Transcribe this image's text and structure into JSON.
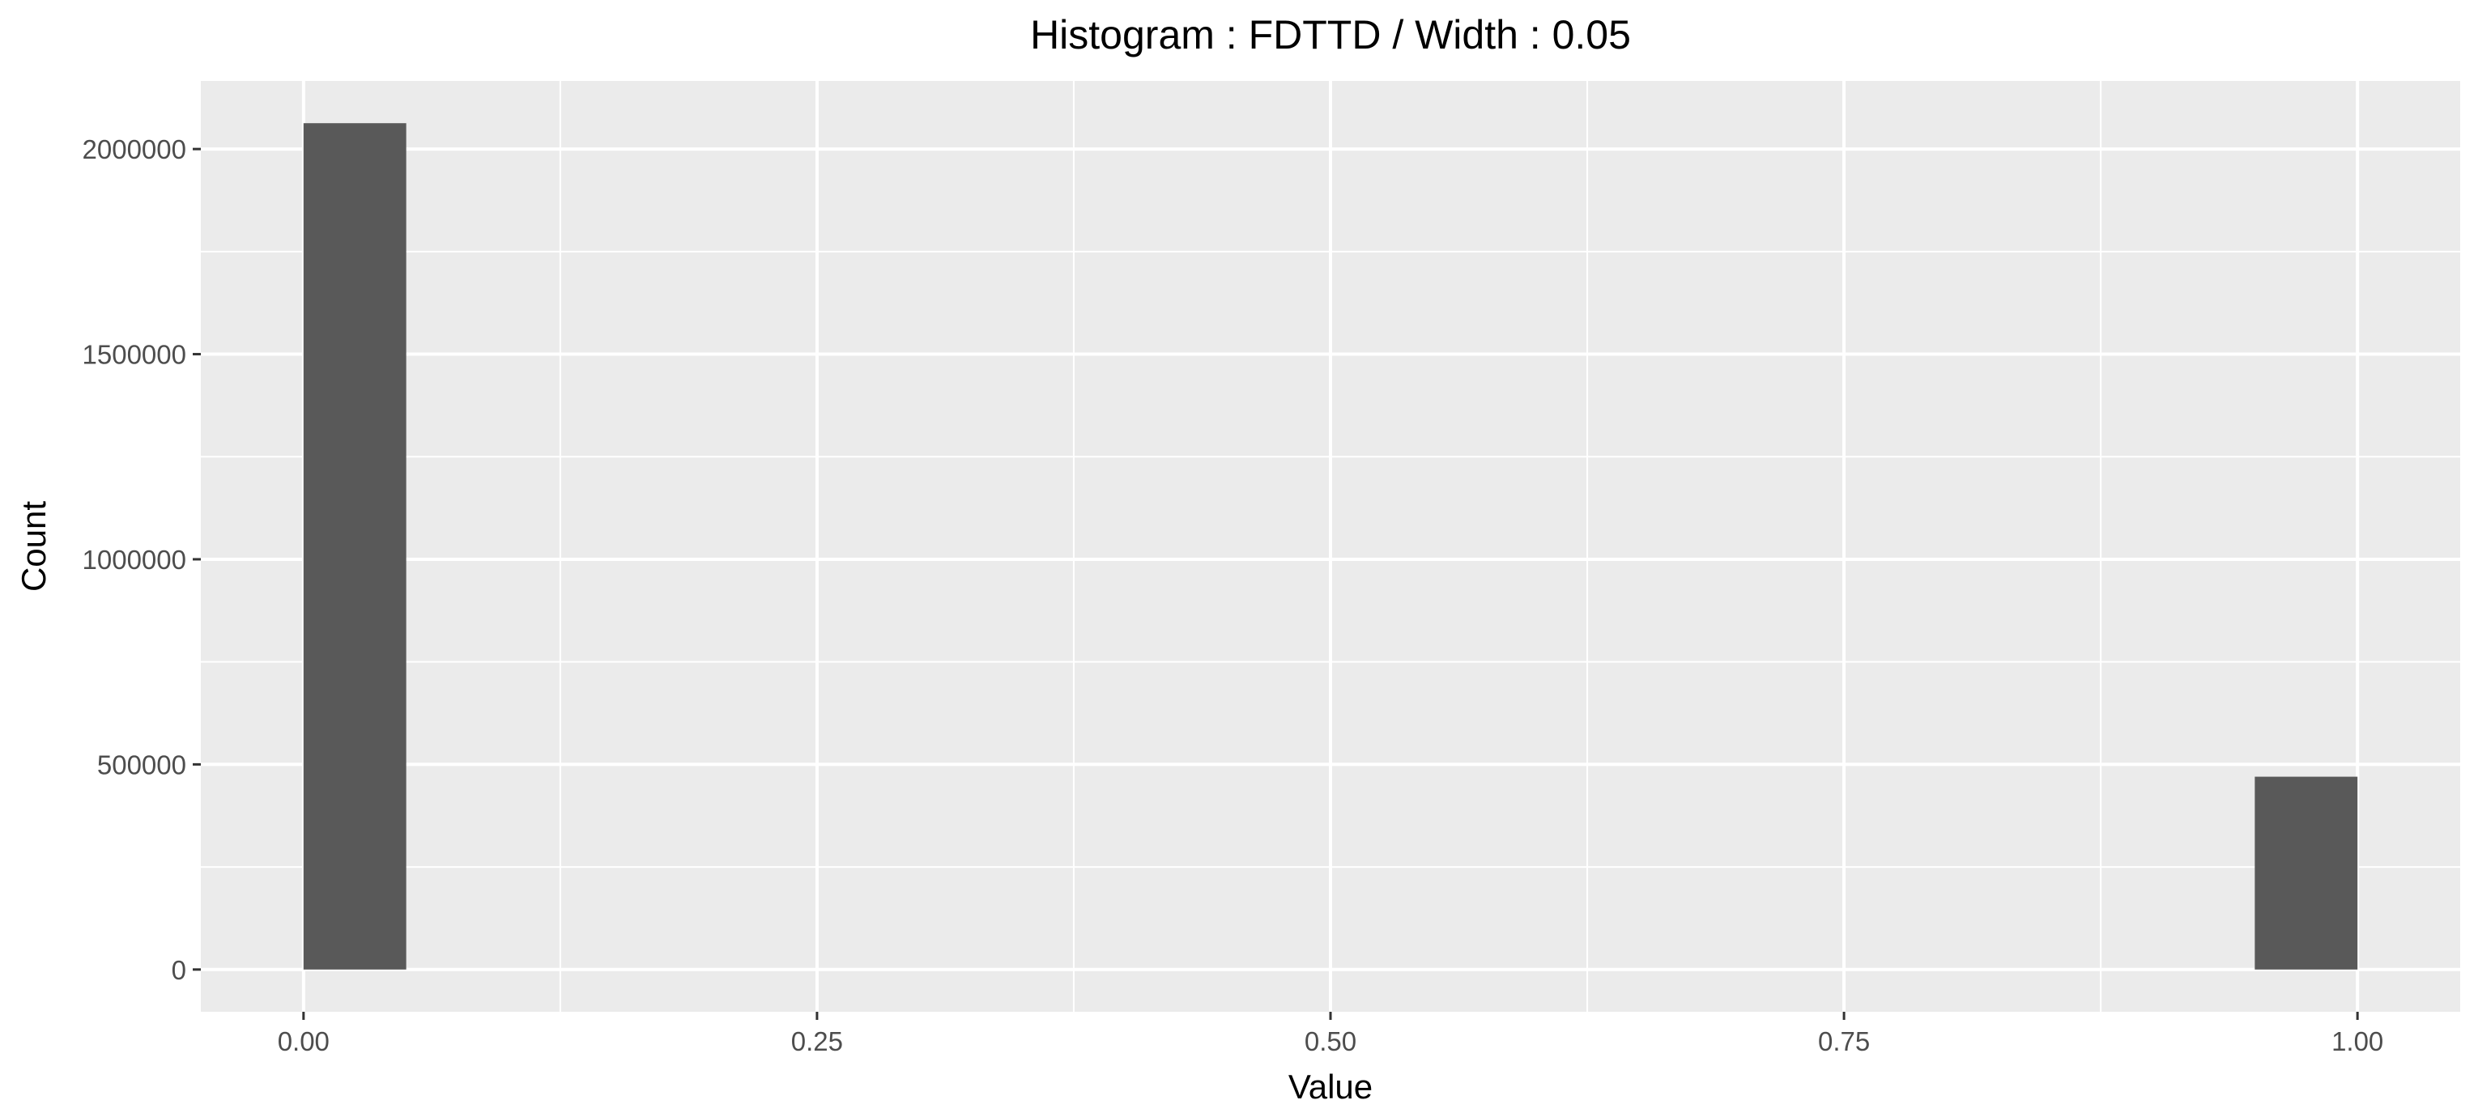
{
  "chart_data": {
    "type": "bar",
    "title": "Histogram : FDTTD / Width : 0.05",
    "xlabel": "Value",
    "ylabel": "Count",
    "bin_width": 0.05,
    "bars": [
      {
        "x_start": 0.0,
        "x_end": 0.05,
        "count": 2063000
      },
      {
        "x_start": 0.95,
        "x_end": 1.0,
        "count": 470000
      }
    ],
    "xlim": [
      -0.05,
      1.05
    ],
    "ylim": [
      -103000,
      2166000
    ],
    "x_ticks": [
      {
        "value": 0,
        "label": "0.00"
      },
      {
        "value": 0.25,
        "label": "0.25"
      },
      {
        "value": 0.5,
        "label": "0.50"
      },
      {
        "value": 0.75,
        "label": "0.75"
      },
      {
        "value": 1,
        "label": "1.00"
      }
    ],
    "y_ticks": [
      {
        "value": 0,
        "label": "0"
      },
      {
        "value": 500000,
        "label": "500000"
      },
      {
        "value": 1000000,
        "label": "1000000"
      },
      {
        "value": 1500000,
        "label": "1500000"
      },
      {
        "value": 2000000,
        "label": "2000000"
      }
    ],
    "grid": true,
    "colors": {
      "panel_background": "#ebebeb",
      "grid": "#ffffff",
      "bar_fill": "#595959",
      "tick_label": "#4d4d4d",
      "tick_mark": "#333333"
    }
  }
}
